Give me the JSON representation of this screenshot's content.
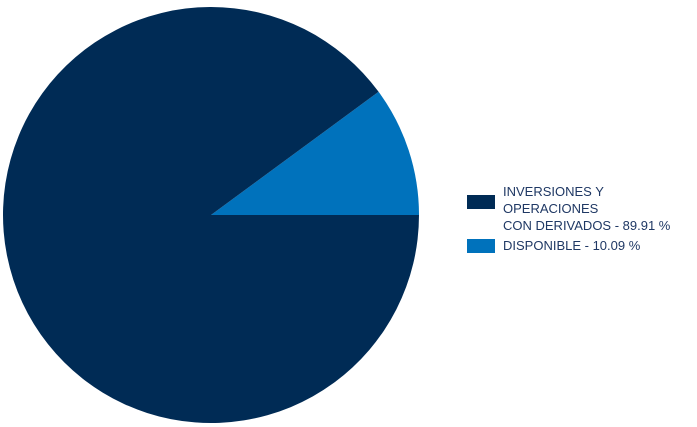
{
  "chart_data": {
    "type": "pie",
    "title": "",
    "start_angle_deg": 90,
    "direction": "counterclockwise",
    "slices": [
      {
        "label": "INVERSIONES Y OPERACIONES\nCON DERIVADOS - 89.91 %",
        "value": 89.91,
        "color": "#002b55"
      },
      {
        "label": "DISPONIBLE - 10.09 %",
        "value": 10.09,
        "color": "#0072bc"
      }
    ],
    "legend_position": "right"
  }
}
